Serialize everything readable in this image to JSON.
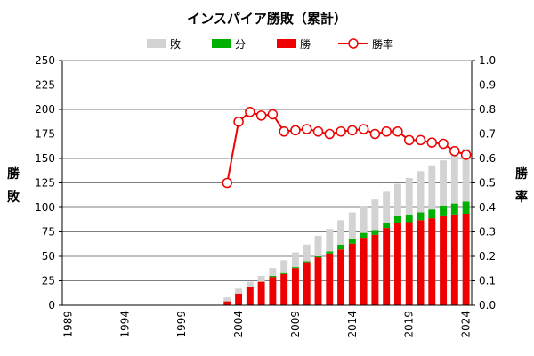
{
  "chart_data": {
    "type": "bar",
    "title": "インスパイア勝敗（累計）",
    "x": [
      1989,
      1990,
      1991,
      1992,
      1993,
      1994,
      1995,
      1996,
      1997,
      1998,
      1999,
      2000,
      2001,
      2002,
      2003,
      2004,
      2005,
      2006,
      2007,
      2008,
      2009,
      2010,
      2011,
      2012,
      2013,
      2014,
      2015,
      2016,
      2017,
      2018,
      2019,
      2020,
      2021,
      2022,
      2023,
      2024
    ],
    "xticks": [
      "1989",
      "1994",
      "1999",
      "2004",
      "2009",
      "2014",
      "2019",
      "2024"
    ],
    "ylabel_left_chars": [
      "勝",
      "敗"
    ],
    "ylabel_right_chars": [
      "勝",
      "率"
    ],
    "ylim": [
      0,
      250
    ],
    "ylim_right": [
      0,
      1.0
    ],
    "yticks_left": [
      "0",
      "25",
      "50",
      "75",
      "100",
      "125",
      "150",
      "175",
      "200",
      "225",
      "250"
    ],
    "yticks_right": [
      "0.0",
      "0.1",
      "0.2",
      "0.3",
      "0.4",
      "0.5",
      "0.6",
      "0.7",
      "0.8",
      "0.9",
      "1.0"
    ],
    "grid": true,
    "legend_position": "top",
    "series": [
      {
        "name": "敗",
        "kind": "bar-stack",
        "color": "#d3d3d3",
        "values": [
          0,
          0,
          0,
          0,
          0,
          0,
          0,
          0,
          0,
          0,
          0,
          0,
          0,
          0,
          4,
          5,
          5,
          6,
          8,
          13,
          15,
          17,
          21,
          23,
          25,
          27,
          27,
          31,
          32,
          33,
          38,
          42,
          45,
          46,
          49,
          54
        ]
      },
      {
        "name": "分",
        "kind": "bar-stack",
        "color": "#00b000",
        "values": [
          0,
          0,
          0,
          0,
          0,
          0,
          0,
          0,
          0,
          0,
          0,
          0,
          0,
          0,
          0,
          0,
          0,
          0,
          1,
          1,
          1,
          1,
          1,
          2,
          5,
          5,
          5,
          5,
          5,
          7,
          7,
          8,
          9,
          11,
          12,
          13
        ]
      },
      {
        "name": "勝",
        "kind": "bar-stack",
        "color": "#ee0000",
        "values": [
          0,
          0,
          0,
          0,
          0,
          0,
          0,
          0,
          0,
          0,
          0,
          0,
          0,
          0,
          4,
          12,
          19,
          24,
          29,
          32,
          38,
          44,
          49,
          53,
          57,
          63,
          69,
          72,
          79,
          84,
          85,
          87,
          89,
          91,
          92,
          93
        ]
      },
      {
        "name": "勝率",
        "kind": "line-right",
        "color": "#ee0000",
        "values": [
          null,
          null,
          null,
          null,
          null,
          null,
          null,
          null,
          null,
          null,
          null,
          null,
          null,
          null,
          0.5,
          0.75,
          0.79,
          0.775,
          0.78,
          0.71,
          0.715,
          0.72,
          0.71,
          0.7,
          0.71,
          0.715,
          0.72,
          0.7,
          0.71,
          0.71,
          0.675,
          0.675,
          0.665,
          0.66,
          0.63,
          0.615
        ]
      }
    ]
  }
}
